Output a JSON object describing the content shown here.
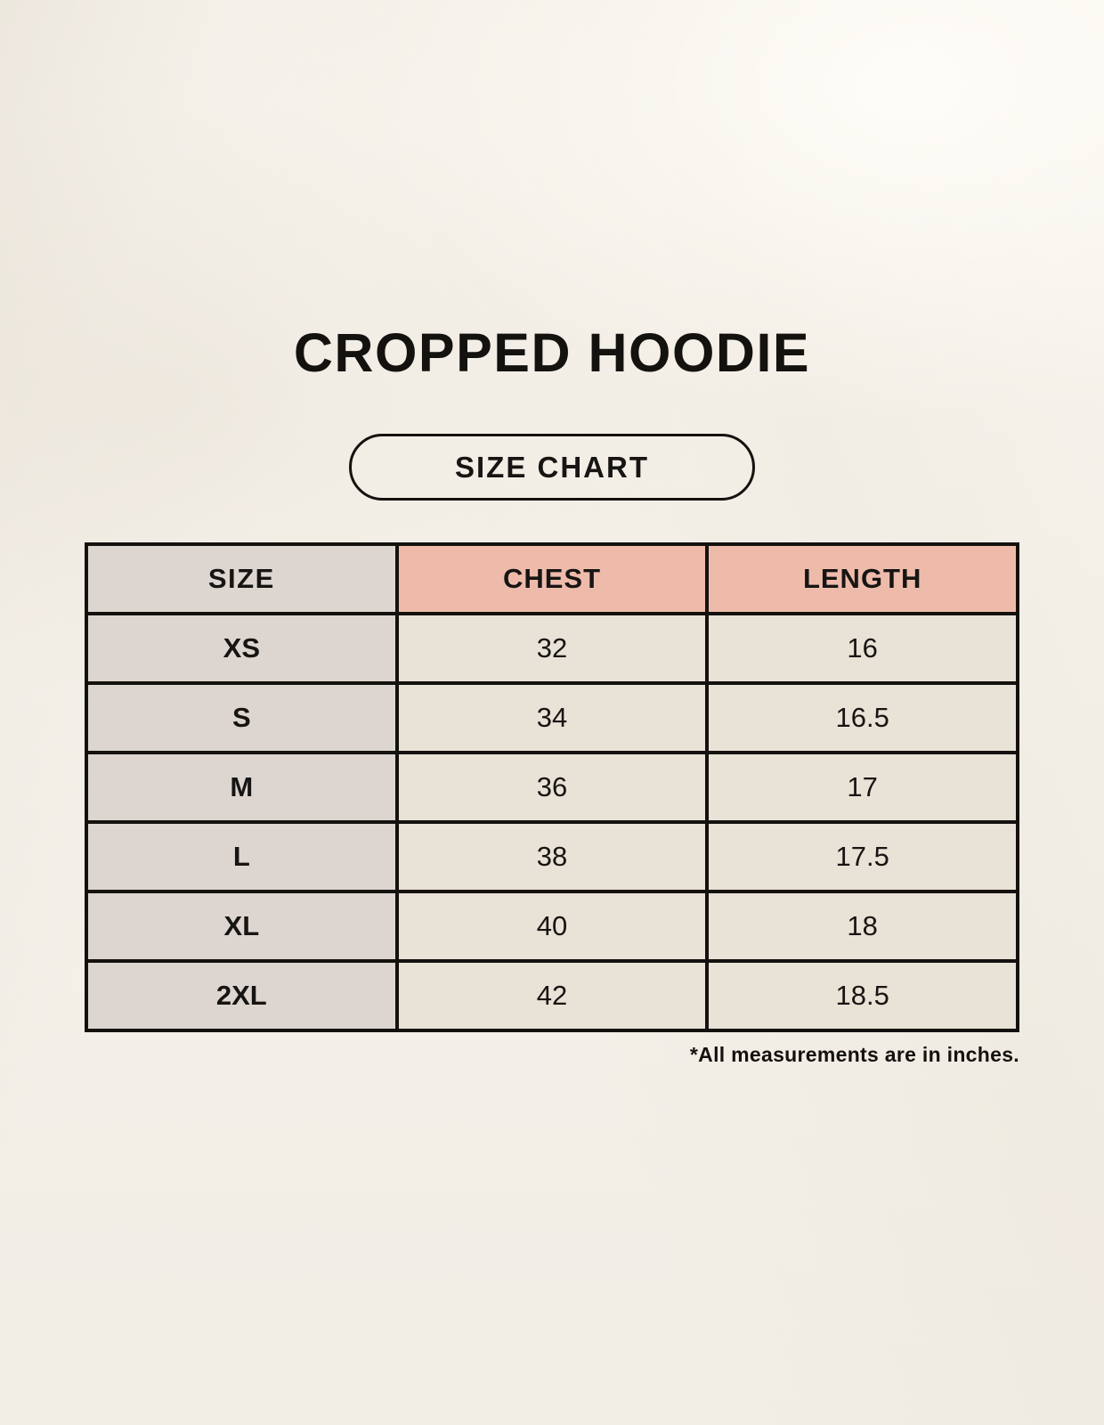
{
  "page": {
    "title": "CROPPED HOODIE",
    "size_chart_label": "SIZE CHART",
    "footnote": "*All measurements are in inches."
  },
  "table": {
    "columns": [
      "SIZE",
      "CHEST",
      "LENGTH"
    ],
    "rows": [
      {
        "size": "XS",
        "chest": "32",
        "length": "16"
      },
      {
        "size": "S",
        "chest": "34",
        "length": "16.5"
      },
      {
        "size": "M",
        "chest": "36",
        "length": "17"
      },
      {
        "size": "L",
        "chest": "38",
        "length": "17.5"
      },
      {
        "size": "XL",
        "chest": "40",
        "length": "18"
      },
      {
        "size": "2XL",
        "chest": "42",
        "length": "18.5"
      }
    ]
  },
  "chart_data": {
    "type": "table",
    "title": "CROPPED HOODIE",
    "columns": [
      "SIZE",
      "CHEST",
      "LENGTH"
    ],
    "rows": [
      [
        "XS",
        32,
        16
      ],
      [
        "S",
        34,
        16.5
      ],
      [
        "M",
        36,
        17
      ],
      [
        "L",
        38,
        17.5
      ],
      [
        "XL",
        40,
        18
      ],
      [
        "2XL",
        42,
        18.5
      ]
    ],
    "units": "inches",
    "note": "*All measurements are in inches."
  },
  "colors": {
    "background": "#f5f1ea",
    "size_column_bg": "#ddd6d0",
    "accent_header_bg": "#eebbab",
    "data_cell_bg": "#e9e2d6",
    "border": "#14120f",
    "text": "#14120f"
  }
}
